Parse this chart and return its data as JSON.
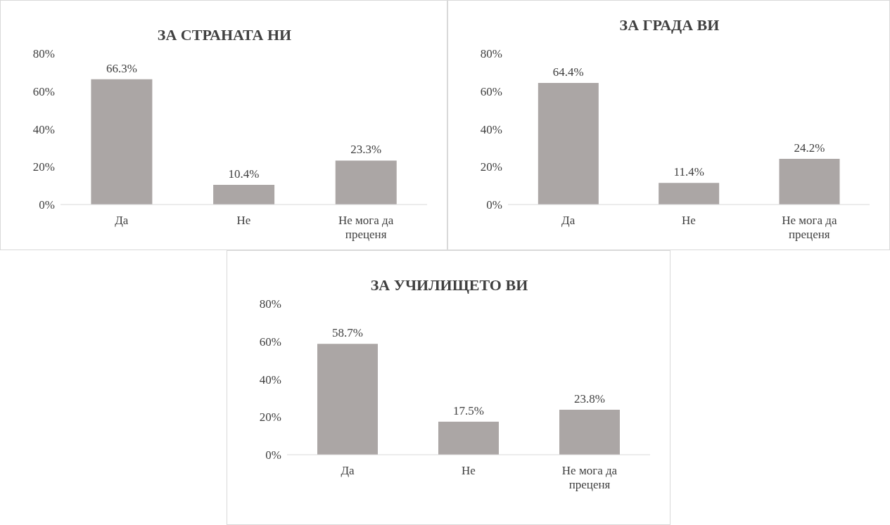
{
  "chart_data": [
    {
      "type": "bar",
      "title": "ЗА СТРАНАТА НИ",
      "categories": [
        "Да",
        "Не",
        "Не мога да преценя"
      ],
      "values": [
        66.3,
        10.4,
        23.3
      ],
      "color": "#aba6a5",
      "value_labels": [
        "66.3%",
        "10.4%",
        "23.3%"
      ],
      "ylim": [
        0,
        80
      ],
      "yticks": [
        {
          "value": 0,
          "label": "0%"
        },
        {
          "value": 20,
          "label": "20%"
        },
        {
          "value": 40,
          "label": "40%"
        },
        {
          "value": 60,
          "label": "60%"
        },
        {
          "value": 80,
          "label": "80%"
        }
      ],
      "grid": false,
      "legend": false
    },
    {
      "type": "bar",
      "title": "ЗА ГРАДА ВИ",
      "categories": [
        "Да",
        "Не",
        "Не мога да преценя"
      ],
      "values": [
        64.4,
        11.4,
        24.2
      ],
      "color": "#aba6a5",
      "value_labels": [
        "64.4%",
        "11.4%",
        "24.2%"
      ],
      "ylim": [
        0,
        80
      ],
      "yticks": [
        {
          "value": 0,
          "label": "0%"
        },
        {
          "value": 20,
          "label": "20%"
        },
        {
          "value": 40,
          "label": "40%"
        },
        {
          "value": 60,
          "label": "60%"
        },
        {
          "value": 80,
          "label": "80%"
        }
      ],
      "grid": false,
      "legend": false
    },
    {
      "type": "bar",
      "title": "ЗА УЧИЛИЩЕТО ВИ",
      "categories": [
        "Да",
        "Не",
        "Не мога да преценя"
      ],
      "values": [
        58.7,
        17.5,
        23.8
      ],
      "color": "#aba6a5",
      "value_labels": [
        "58.7%",
        "17.5%",
        "23.8%"
      ],
      "ylim": [
        0,
        80
      ],
      "yticks": [
        {
          "value": 0,
          "label": "0%"
        },
        {
          "value": 20,
          "label": "20%"
        },
        {
          "value": 40,
          "label": "40%"
        },
        {
          "value": 60,
          "label": "60%"
        },
        {
          "value": 80,
          "label": "80%"
        }
      ],
      "grid": false,
      "legend": false
    }
  ]
}
